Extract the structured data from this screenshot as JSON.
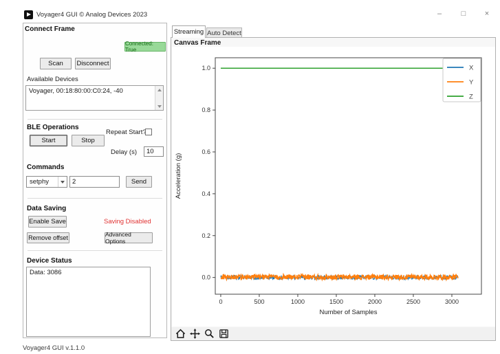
{
  "window": {
    "title": "Voyager4 GUI © Analog Devices 2023",
    "minimize_glyph": "–",
    "maximize_glyph": "□",
    "close_glyph": "×",
    "status_bar": "Voyager4 GUI v.1.1.0"
  },
  "colors": {
    "connected_bg": "#98d998",
    "connected_text": "#156b15",
    "connected_border": "#67b567",
    "saving_disabled": "#e03131"
  },
  "connect_frame": {
    "title": "Connect Frame",
    "connected_badge": "Connected: True",
    "scan_button": "Scan",
    "disconnect_button": "Disconnect",
    "available_devices_label": "Available Devices",
    "devices": [
      "Voyager, 00:18:80:00:C0:24, -40"
    ]
  },
  "ble_operations": {
    "title": "BLE Operations",
    "start_button": "Start",
    "stop_button": "Stop",
    "repeat_start_label": "Repeat Start?",
    "repeat_start_checked": false,
    "delay_label": "Delay (s)",
    "delay_value": "10"
  },
  "commands": {
    "title": "Commands",
    "selected_command": "setphy",
    "argument_value": "2",
    "send_button": "Send"
  },
  "data_saving": {
    "title": "Data Saving",
    "enable_save_button": "Enable Save",
    "saving_status": "Saving Disabled",
    "remove_offset_button": "Remove offset",
    "advanced_options_button": "Advanced Options"
  },
  "device_status": {
    "title": "Device Status",
    "log": "Data: 3086"
  },
  "tabs": [
    {
      "label": "Streaming",
      "active": true
    },
    {
      "label": "Auto Detect",
      "active": false
    }
  ],
  "canvas_frame": {
    "title": "Canvas Frame"
  },
  "toolbar_icons": [
    "home",
    "pan",
    "zoom",
    "save"
  ],
  "chart_data": {
    "type": "line",
    "xlabel": "Number of Samples",
    "ylabel": "Acceleration (g)",
    "x_ticks": [
      0,
      500,
      1000,
      1500,
      2000,
      2500,
      3000
    ],
    "y_ticks": [
      0.0,
      0.2,
      0.4,
      0.6,
      0.8,
      1.0
    ],
    "xlim": [
      -71,
      3384
    ],
    "ylim": [
      -0.08,
      1.05
    ],
    "data_x_range": [
      0,
      3080
    ],
    "legend": [
      "X",
      "Y",
      "Z"
    ],
    "legend_position": "upper right",
    "grid": false,
    "series": [
      {
        "name": "X",
        "color": "#1f77b4",
        "mean": 0.0,
        "noise_amplitude": 0.01,
        "width": 1.1
      },
      {
        "name": "Y",
        "color": "#ff7f0e",
        "mean": 0.002,
        "noise_amplitude": 0.012,
        "width": 1.6
      },
      {
        "name": "Z",
        "color": "#2ca02c",
        "mean": 1.0,
        "noise_amplitude": 0.0,
        "width": 1.5
      }
    ]
  }
}
